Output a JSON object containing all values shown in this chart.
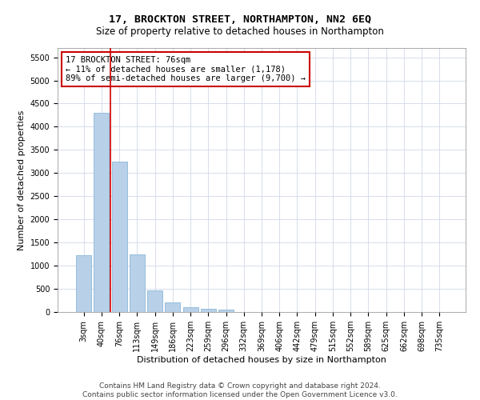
{
  "title": "17, BROCKTON STREET, NORTHAMPTON, NN2 6EQ",
  "subtitle": "Size of property relative to detached houses in Northampton",
  "xlabel": "Distribution of detached houses by size in Northampton",
  "ylabel": "Number of detached properties",
  "footer_line1": "Contains HM Land Registry data © Crown copyright and database right 2024.",
  "footer_line2": "Contains public sector information licensed under the Open Government Licence v3.0.",
  "annotation_title": "17 BROCKTON STREET: 76sqm",
  "annotation_line2": "← 11% of detached houses are smaller (1,178)",
  "annotation_line3": "89% of semi-detached houses are larger (9,700) →",
  "bar_color": "#b8d0e8",
  "bar_edge_color": "#7aafd4",
  "marker_line_color": "#cc0000",
  "annotation_box_color": "#cc0000",
  "grid_color": "#d0d8e8",
  "background_color": "#ffffff",
  "categories": [
    "3sqm",
    "40sqm",
    "76sqm",
    "113sqm",
    "149sqm",
    "186sqm",
    "223sqm",
    "259sqm",
    "296sqm",
    "332sqm",
    "369sqm",
    "406sqm",
    "442sqm",
    "479sqm",
    "515sqm",
    "552sqm",
    "589sqm",
    "625sqm",
    "662sqm",
    "698sqm",
    "735sqm"
  ],
  "values": [
    1220,
    4300,
    3250,
    1240,
    470,
    200,
    100,
    75,
    60,
    0,
    0,
    0,
    0,
    0,
    0,
    0,
    0,
    0,
    0,
    0,
    0
  ],
  "ylim": [
    0,
    5700
  ],
  "yticks": [
    0,
    500,
    1000,
    1500,
    2000,
    2500,
    3000,
    3500,
    4000,
    4500,
    5000,
    5500
  ],
  "property_bar_index": 2,
  "title_fontsize": 9.5,
  "subtitle_fontsize": 8.5,
  "xlabel_fontsize": 8,
  "ylabel_fontsize": 8,
  "tick_fontsize": 7,
  "annotation_fontsize": 7.5,
  "footer_fontsize": 6.5
}
